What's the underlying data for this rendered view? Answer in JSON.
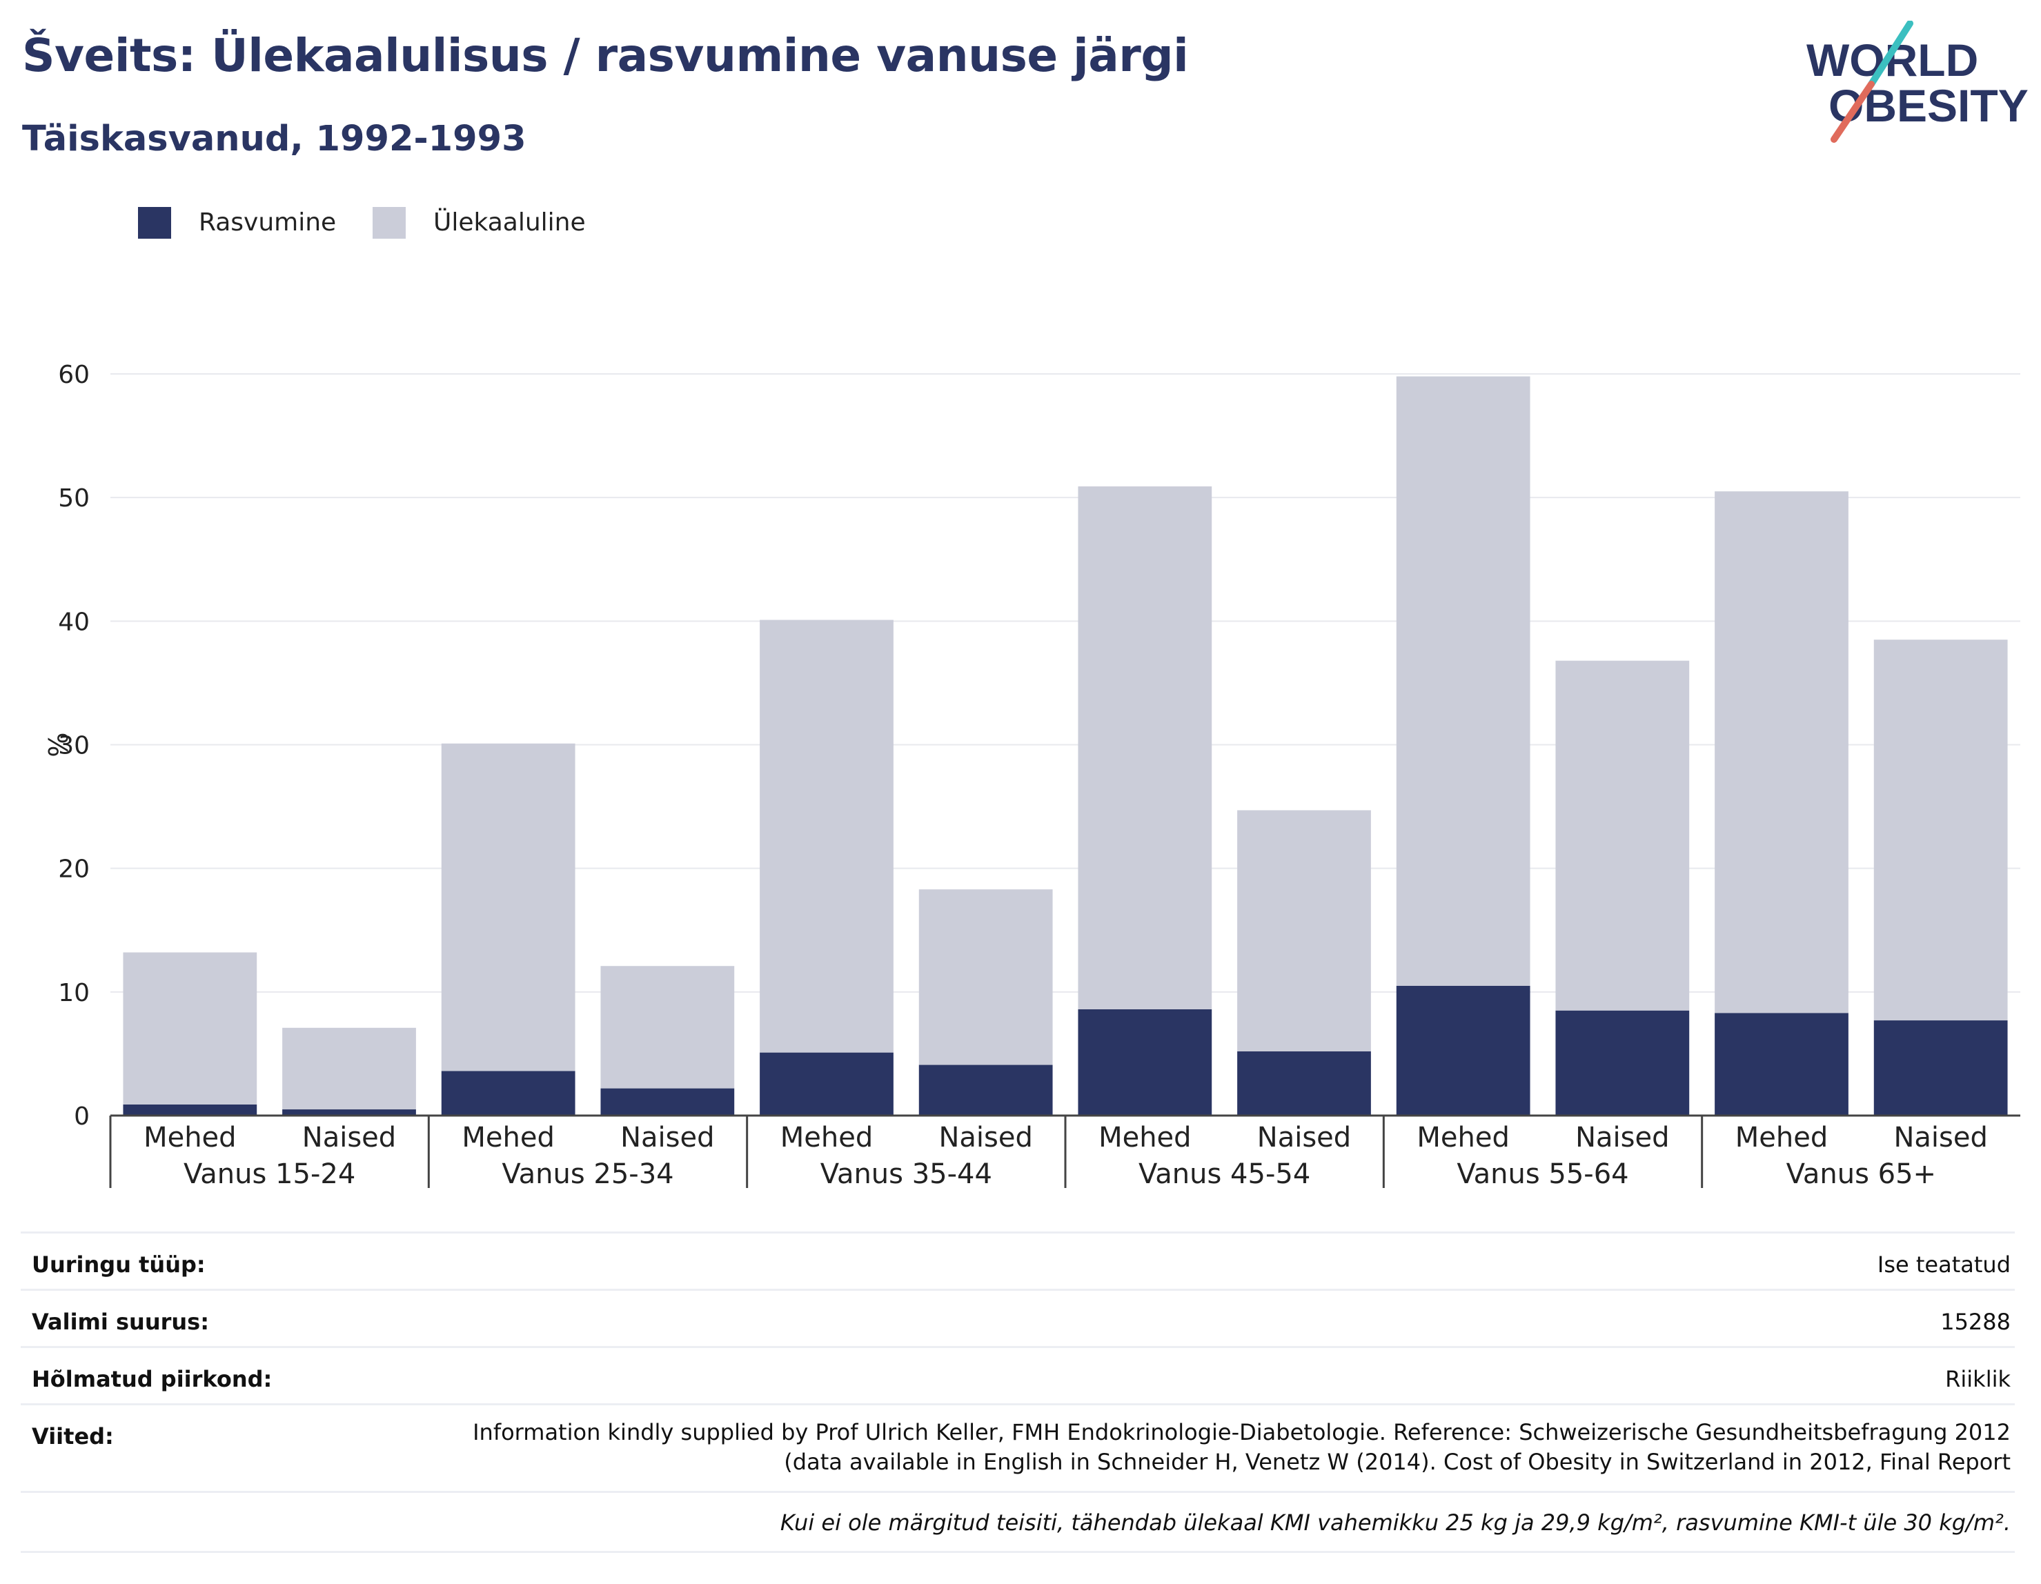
{
  "header": {
    "title": "Šveits: Ülekaalulisus / rasvumine vanuse järgi",
    "subtitle": "Täiskasvanud, 1992-1993"
  },
  "logo": {
    "line1": "WORLD",
    "line2": "OBESITY",
    "slash_colors": [
      "#3bbfc0",
      "#e06b5c"
    ]
  },
  "legend": [
    {
      "label": "Rasvumine",
      "color": "#2a3563"
    },
    {
      "label": "Ülekaaluline",
      "color": "#cbcdd9"
    }
  ],
  "chart_data": {
    "type": "bar",
    "stacked": true,
    "ylabel": "%",
    "ylim": [
      0,
      60
    ],
    "yticks": [
      0,
      10,
      20,
      30,
      40,
      50,
      60
    ],
    "grid": true,
    "legend_position": "top-left",
    "groups": [
      "Vanus 15-24",
      "Vanus 25-34",
      "Vanus 35-44",
      "Vanus 45-54",
      "Vanus 55-64",
      "Vanus 65+"
    ],
    "categories": [
      "Mehed",
      "Naised",
      "Mehed",
      "Naised",
      "Mehed",
      "Naised",
      "Mehed",
      "Naised",
      "Mehed",
      "Naised",
      "Mehed",
      "Naised"
    ],
    "series": [
      {
        "name": "Rasvumine",
        "color": "#2a3563",
        "values": [
          0.9,
          0.5,
          3.6,
          2.2,
          5.1,
          4.1,
          8.6,
          5.2,
          10.5,
          8.5,
          8.3,
          7.7
        ]
      },
      {
        "name": "Ülekaaluline",
        "color": "#cbcdd9",
        "values": [
          12.3,
          6.6,
          26.5,
          9.9,
          35.0,
          14.2,
          42.3,
          19.5,
          49.3,
          28.3,
          42.2,
          30.8
        ]
      }
    ]
  },
  "meta": [
    {
      "key": "Uuringu tüüp:",
      "value": "Ise teatatud"
    },
    {
      "key": "Valimi suurus:",
      "value": "15288"
    },
    {
      "key": "Hõlmatud piirkond:",
      "value": "Riiklik"
    },
    {
      "key": "Viited:",
      "value": "Information kindly supplied by Prof Ulrich Keller, FMH Endokrinologie-Diabetologie. Reference: Schweizerische Gesundheitsbefragung 2012 (data available in English in Schneider H, Venetz W (2014). Cost of Obesity in Switzerland in 2012, Final Report"
    }
  ],
  "note": "Kui ei ole märgitud teisiti, tähendab ülekaal KMI vahemikku 25 kg ja 29,9 kg/m², rasvumine KMI-t üle 30 kg/m²."
}
